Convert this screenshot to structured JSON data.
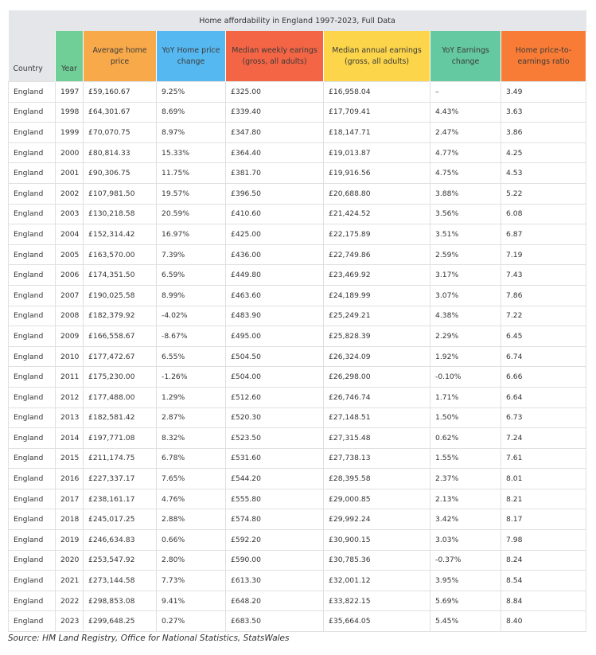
{
  "title": "Home affordability in England 1997-2023, Full Data",
  "columns": [
    {
      "label": "Country",
      "color": "#e4e6e9"
    },
    {
      "label": "Year",
      "color": "#6fcf97"
    },
    {
      "label": "Average home price",
      "color": "#f8a94a"
    },
    {
      "label": "YoY Home price change",
      "color": "#56b8f0"
    },
    {
      "label": "Median weekly earings (gross, all adults)",
      "color": "#f46545"
    },
    {
      "label": "Median annual earnings (gross, all adults)",
      "color": "#fcd54a"
    },
    {
      "label": "YoY Earnings change",
      "color": "#64c9a0"
    },
    {
      "label": "Home price-to-earnings ratio",
      "color": "#f87c35"
    }
  ],
  "rows": [
    [
      "England",
      "1997",
      "£59,160.67",
      "9.25%",
      "£325.00",
      "£16,958.04",
      "–",
      "3.49"
    ],
    [
      "England",
      "1998",
      "£64,301.67",
      "8.69%",
      "£339.40",
      "£17,709.41",
      "4.43%",
      "3.63"
    ],
    [
      "England",
      "1999",
      "£70,070.75",
      "8.97%",
      "£347.80",
      "£18,147.71",
      "2.47%",
      "3.86"
    ],
    [
      "England",
      "2000",
      "£80,814.33",
      "15.33%",
      "£364.40",
      "£19,013.87",
      "4.77%",
      "4.25"
    ],
    [
      "England",
      "2001",
      "£90,306.75",
      "11.75%",
      "£381.70",
      "£19,916.56",
      "4.75%",
      "4.53"
    ],
    [
      "England",
      "2002",
      "£107,981.50",
      "19.57%",
      "£396.50",
      "£20,688.80",
      "3.88%",
      "5.22"
    ],
    [
      "England",
      "2003",
      "£130,218.58",
      "20.59%",
      "£410.60",
      "£21,424.52",
      "3.56%",
      "6.08"
    ],
    [
      "England",
      "2004",
      "£152,314.42",
      "16.97%",
      "£425.00",
      "£22,175.89",
      "3.51%",
      "6.87"
    ],
    [
      "England",
      "2005",
      "£163,570.00",
      "7.39%",
      "£436.00",
      "£22,749.86",
      "2.59%",
      "7.19"
    ],
    [
      "England",
      "2006",
      "£174,351.50",
      "6.59%",
      "£449.80",
      "£23,469.92",
      "3.17%",
      "7.43"
    ],
    [
      "England",
      "2007",
      "£190,025.58",
      "8.99%",
      "£463.60",
      "£24,189.99",
      "3.07%",
      "7.86"
    ],
    [
      "England",
      "2008",
      "£182,379.92",
      "-4.02%",
      "£483.90",
      "£25,249.21",
      "4.38%",
      "7.22"
    ],
    [
      "England",
      "2009",
      "£166,558.67",
      "-8.67%",
      "£495.00",
      "£25,828.39",
      "2.29%",
      "6.45"
    ],
    [
      "England",
      "2010",
      "£177,472.67",
      "6.55%",
      "£504.50",
      "£26,324.09",
      "1.92%",
      "6.74"
    ],
    [
      "England",
      "2011",
      "£175,230.00",
      "-1.26%",
      "£504.00",
      "£26,298.00",
      "-0.10%",
      "6.66"
    ],
    [
      "England",
      "2012",
      "£177,488.00",
      "1.29%",
      "£512.60",
      "£26,746.74",
      "1.71%",
      "6.64"
    ],
    [
      "England",
      "2013",
      "£182,581.42",
      "2.87%",
      "£520.30",
      "£27,148.51",
      "1.50%",
      "6.73"
    ],
    [
      "England",
      "2014",
      "£197,771.08",
      "8.32%",
      "£523.50",
      "£27,315.48",
      "0.62%",
      "7.24"
    ],
    [
      "England",
      "2015",
      "£211,174.75",
      "6.78%",
      "£531.60",
      "£27,738.13",
      "1.55%",
      "7.61"
    ],
    [
      "England",
      "2016",
      "£227,337.17",
      "7.65%",
      "£544.20",
      "£28,395.58",
      "2.37%",
      "8.01"
    ],
    [
      "England",
      "2017",
      "£238,161.17",
      "4.76%",
      "£555.80",
      "£29,000.85",
      "2.13%",
      "8.21"
    ],
    [
      "England",
      "2018",
      "£245,017.25",
      "2.88%",
      "£574.80",
      "£29,992.24",
      "3.42%",
      "8.17"
    ],
    [
      "England",
      "2019",
      "£246,634.83",
      "0.66%",
      "£592.20",
      "£30,900.15",
      "3.03%",
      "7.98"
    ],
    [
      "England",
      "2020",
      "£253,547.92",
      "2.80%",
      "£590.00",
      "£30,785.36",
      "-0.37%",
      "8.24"
    ],
    [
      "England",
      "2021",
      "£273,144.58",
      "7.73%",
      "£613.30",
      "£32,001.12",
      "3.95%",
      "8.54"
    ],
    [
      "England",
      "2022",
      "£298,853.08",
      "9.41%",
      "£648.20",
      "£33,822.15",
      "5.69%",
      "8.84"
    ],
    [
      "England",
      "2023",
      "£299,648.25",
      "0.27%",
      "£683.50",
      "£35,664.05",
      "5.45%",
      "8.40"
    ]
  ],
  "source": "Source: HM Land Registry, Office for National Statistics, StatsWales"
}
